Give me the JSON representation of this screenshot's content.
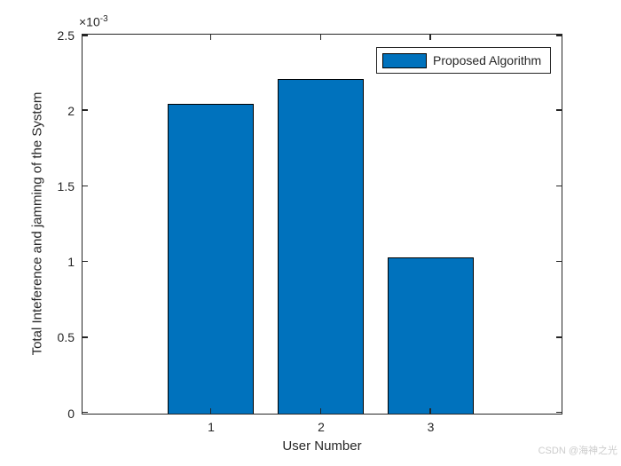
{
  "chart_data": {
    "type": "bar",
    "title": "",
    "xlabel": "User Number",
    "ylabel": "Total Inteference and jamming of the System",
    "categories": [
      "1",
      "2",
      "3"
    ],
    "series": [
      {
        "name": "Proposed Algorithm",
        "values": [
          0.00205,
          0.00221,
          0.00103
        ]
      }
    ],
    "ylim": [
      0,
      0.0025
    ],
    "ytick_values": [
      0,
      0.0005,
      0.001,
      0.0015,
      0.002,
      0.0025
    ],
    "ytick_labels": [
      "0",
      "0.5",
      "1",
      "1.5",
      "2",
      "2.5"
    ],
    "y_axis_multiplier": {
      "base": "×10",
      "exponent": "-3"
    },
    "legend": {
      "entries": [
        "Proposed Algorithm"
      ],
      "position": "northeast"
    },
    "grid": false,
    "box": true,
    "tick_direction": "in",
    "colors": {
      "bar_fill": "#0072BD",
      "bar_edge": "#000000",
      "axis": "#262626",
      "text": "#262626"
    }
  },
  "watermark": {
    "text": "CSDN @海神之光",
    "color": "#cccccc"
  }
}
